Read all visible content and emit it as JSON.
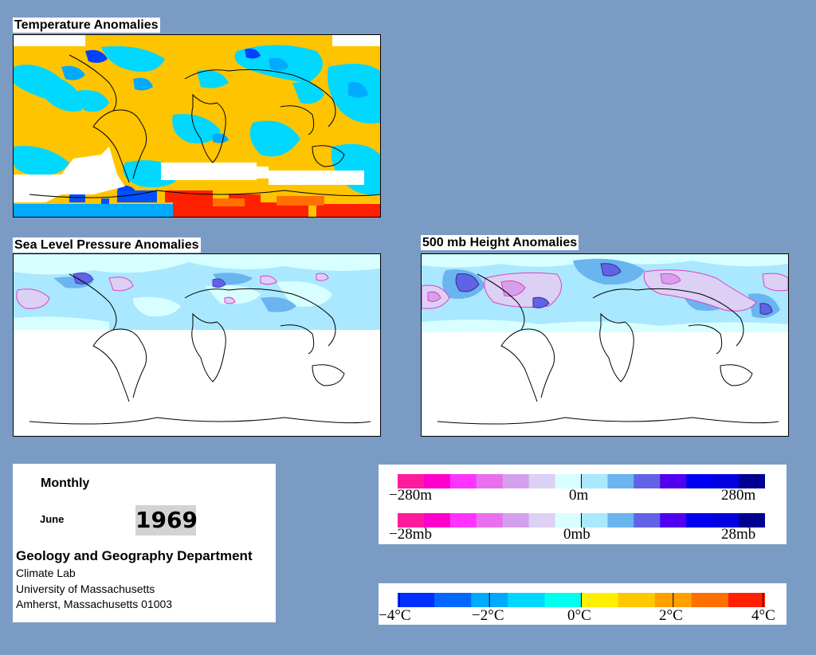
{
  "panels": {
    "temperature": {
      "title": "Temperature Anomalies"
    },
    "slp": {
      "title": "Sea Level Pressure Anomalies"
    },
    "height500": {
      "title": "500 mb Height Anomalies"
    }
  },
  "info": {
    "period": "Monthly",
    "month": "June",
    "year": "1969",
    "department": "Geology and Geography Department",
    "lines": [
      "Climate Lab",
      "University of Massachusetts",
      "Amherst, Massachusetts 01003"
    ]
  },
  "legends": {
    "height": {
      "min": "−280m",
      "mid": "0m",
      "max": "280m"
    },
    "pressure": {
      "min": "−28mb",
      "mid": "0mb",
      "max": "28mb"
    },
    "temperature": {
      "labels": [
        "−4°C",
        "−2°C",
        "0°C",
        "2°C",
        "4°C"
      ]
    }
  },
  "colors": {
    "background": "#7a9cc4",
    "anomaly_scale": [
      "#ff1c9c",
      "#ff00cc",
      "#ff33ff",
      "#e870ee",
      "#d4a0ec",
      "#dcd0f4",
      "#d8ffff",
      "#aae8ff",
      "#6ab4f0",
      "#6262e6",
      "#5000ee",
      "#0000f0",
      "#0000e0",
      "#000090"
    ],
    "temperature_scale": [
      "#0030ff",
      "#0068ff",
      "#00aaff",
      "#00d8ff",
      "#00ffee",
      "#fff000",
      "#ffc800",
      "#ffa000",
      "#ff7000",
      "#ff2000"
    ]
  }
}
